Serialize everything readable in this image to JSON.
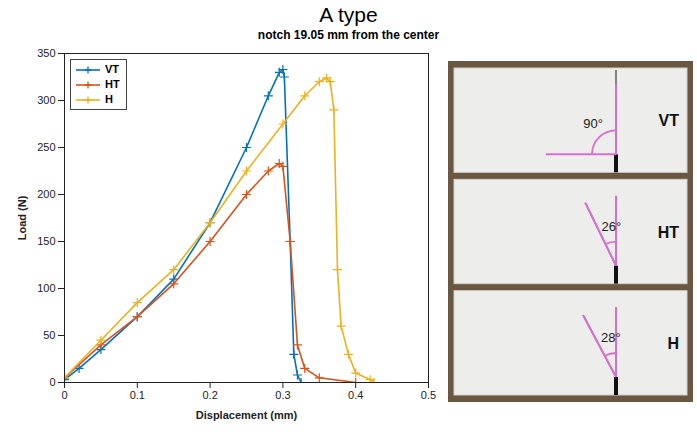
{
  "chart_data": {
    "type": "line",
    "title": "A type",
    "subtitle": "notch 19.05 mm from the center",
    "x_label": "Displacement (mm)",
    "y_label": "Load (N)",
    "xlim": [
      0,
      0.5
    ],
    "xticks": [
      0,
      0.1,
      0.2,
      0.3,
      0.4,
      0.5
    ],
    "ylim": [
      0,
      350
    ],
    "yticks": [
      0,
      50,
      100,
      150,
      200,
      250,
      300,
      350
    ],
    "grid": false,
    "legend": "upper left",
    "marker": "plus",
    "series": [
      {
        "name": "VT",
        "color": "#0072BD",
        "x": [
          0,
          0.02,
          0.05,
          0.1,
          0.15,
          0.2,
          0.25,
          0.28,
          0.295,
          0.3,
          0.302,
          0.31,
          0.315,
          0.32,
          0.325
        ],
        "values": [
          3,
          15,
          35,
          70,
          110,
          170,
          250,
          305,
          330,
          333,
          325,
          150,
          30,
          8,
          0
        ]
      },
      {
        "name": "HT",
        "color": "#D95319",
        "x": [
          0,
          0.05,
          0.1,
          0.15,
          0.2,
          0.25,
          0.28,
          0.295,
          0.3,
          0.31,
          0.32,
          0.33,
          0.35,
          0.4
        ],
        "values": [
          5,
          40,
          70,
          105,
          150,
          200,
          225,
          233,
          230,
          150,
          40,
          15,
          5,
          0
        ]
      },
      {
        "name": "H",
        "color": "#EDB120",
        "x": [
          0,
          0.05,
          0.1,
          0.15,
          0.2,
          0.25,
          0.3,
          0.33,
          0.35,
          0.36,
          0.365,
          0.37,
          0.375,
          0.38,
          0.39,
          0.4,
          0.42,
          0.425
        ],
        "values": [
          5,
          45,
          85,
          120,
          170,
          225,
          275,
          305,
          320,
          324,
          320,
          290,
          120,
          60,
          30,
          10,
          3,
          0
        ]
      }
    ],
    "annotations": [
      {
        "text": "VT",
        "angle": {
          "value": 90,
          "label": "90°"
        }
      },
      {
        "text": "HT",
        "angle": {
          "value": 26,
          "label": "26°"
        }
      },
      {
        "text": "H",
        "angle": {
          "value": 28,
          "label": "28°"
        }
      }
    ]
  }
}
